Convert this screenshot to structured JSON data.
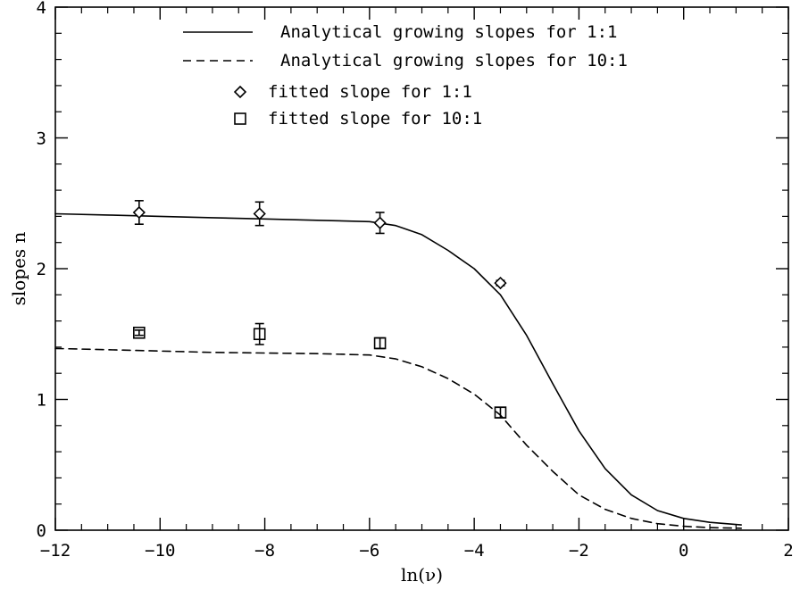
{
  "chart_data": {
    "type": "line",
    "xlabel": "ln(ν)",
    "ylabel": "slopes n",
    "xlim": [
      -12,
      2
    ],
    "ylim": [
      0,
      4
    ],
    "x_ticks": [
      -12,
      -10,
      -8,
      -6,
      -4,
      -2,
      0,
      2
    ],
    "y_ticks": [
      0,
      1,
      2,
      3,
      4
    ],
    "x_tick_labels": [
      "−12",
      "−10",
      "−8",
      "−6",
      "−4",
      "−2",
      "0",
      "2"
    ],
    "y_tick_labels": [
      "0",
      "1",
      "2",
      "3",
      "4"
    ],
    "grid": false,
    "legend_position": "top-center",
    "series": [
      {
        "name": "Analytical growing slopes for 1:1",
        "kind": "line",
        "style": "solid",
        "x": [
          -12,
          -11,
          -10,
          -9,
          -8,
          -7,
          -6,
          -5.5,
          -5,
          -4.5,
          -4,
          -3.5,
          -3,
          -2.5,
          -2,
          -1.5,
          -1,
          -0.5,
          0,
          0.5,
          1.1
        ],
        "y": [
          2.42,
          2.41,
          2.4,
          2.39,
          2.38,
          2.37,
          2.36,
          2.33,
          2.26,
          2.14,
          2.0,
          1.8,
          1.49,
          1.12,
          0.76,
          0.47,
          0.27,
          0.15,
          0.09,
          0.06,
          0.04
        ]
      },
      {
        "name": "Analytical growing slopes for 10:1",
        "kind": "line",
        "style": "dashed",
        "x": [
          -12,
          -11,
          -10,
          -9,
          -8,
          -7,
          -6,
          -5.5,
          -5,
          -4.5,
          -4,
          -3.5,
          -3,
          -2.5,
          -2,
          -1.5,
          -1,
          -0.5,
          0,
          0.5,
          1.1
        ],
        "y": [
          1.39,
          1.38,
          1.37,
          1.36,
          1.355,
          1.35,
          1.34,
          1.31,
          1.25,
          1.16,
          1.04,
          0.88,
          0.65,
          0.45,
          0.27,
          0.16,
          0.09,
          0.05,
          0.03,
          0.02,
          0.015
        ]
      },
      {
        "name": "fitted slope for 1:1",
        "kind": "points",
        "marker": "diamond",
        "points": [
          {
            "x": -10.4,
            "y": 2.43,
            "err": 0.09
          },
          {
            "x": -8.1,
            "y": 2.42,
            "err": 0.09
          },
          {
            "x": -5.8,
            "y": 2.35,
            "err": 0.08
          },
          {
            "x": -3.5,
            "y": 1.89,
            "err": 0.02
          }
        ]
      },
      {
        "name": "fitted slope for 10:1",
        "kind": "points",
        "marker": "square",
        "points": [
          {
            "x": -10.4,
            "y": 1.51,
            "err": 0.02
          },
          {
            "x": -8.1,
            "y": 1.5,
            "err": 0.08
          },
          {
            "x": -5.8,
            "y": 1.43,
            "err": 0.04
          },
          {
            "x": -3.5,
            "y": 0.9,
            "err": 0.04
          }
        ]
      }
    ]
  }
}
